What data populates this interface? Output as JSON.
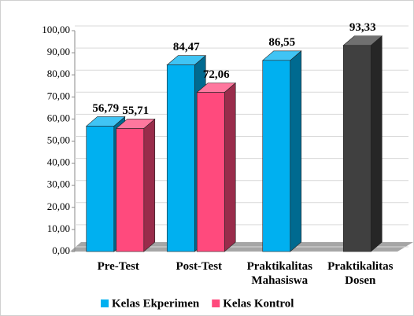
{
  "chart_data": {
    "type": "bar3d",
    "categories": [
      "Pre-Test",
      "Post-Test",
      "Praktikalitas Mahasiswa",
      "Praktikalitas Dosen"
    ],
    "series": [
      {
        "name": "Kelas Ekperimen",
        "color": "#00b0f0",
        "colors": [
          "#00b0f0",
          "#00b0f0",
          "#00b0f0",
          "#404040"
        ],
        "values": [
          56.79,
          84.47,
          86.55,
          93.33
        ],
        "value_labels": [
          "56,79",
          "84,47",
          "86,55",
          "93,33"
        ]
      },
      {
        "name": "Kelas Kontrol",
        "color": "#ff4a7d",
        "values": [
          55.71,
          72.06,
          null,
          null
        ],
        "value_labels": [
          "55,71",
          "72,06",
          null,
          null
        ]
      }
    ],
    "ylim": [
      0,
      100
    ],
    "yticks": [
      {
        "value": 0,
        "label": "0,00"
      },
      {
        "value": 10,
        "label": "10,00"
      },
      {
        "value": 20,
        "label": "20,00"
      },
      {
        "value": 30,
        "label": "30,00"
      },
      {
        "value": 40,
        "label": "40,00"
      },
      {
        "value": 50,
        "label": "50,00"
      },
      {
        "value": 60,
        "label": "60,00"
      },
      {
        "value": 70,
        "label": "70,00"
      },
      {
        "value": 80,
        "label": "80,00"
      },
      {
        "value": 90,
        "label": "90,00"
      },
      {
        "value": 100,
        "label": "100,00"
      }
    ],
    "grid": true,
    "legend": "bottom"
  }
}
